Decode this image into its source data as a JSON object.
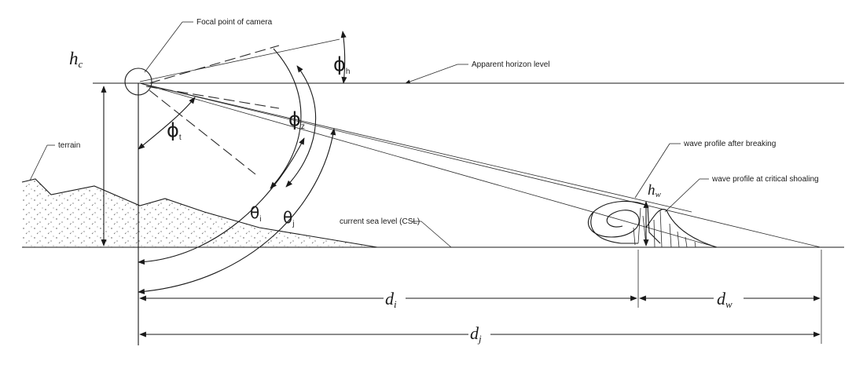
{
  "labels": {
    "focal_point": "Focal point of camera",
    "apparent_horizon": "Apparent horizon level",
    "terrain": "terrain",
    "wave_after_breaking": "wave profile after breaking",
    "wave_critical_shoaling": "wave profile at critical shoaling",
    "current_sea_level": "current sea level (CSL)"
  },
  "symbols": {
    "hc": {
      "main": "h",
      "sub": "c"
    },
    "hw": {
      "main": "h",
      "sub": "w"
    },
    "phi_h": {
      "main": "ϕ",
      "sub": "h"
    },
    "phi_z": {
      "main": "ϕ",
      "sub": "z"
    },
    "phi_t": {
      "main": "ϕ",
      "sub": "t"
    },
    "theta_i": {
      "main": "θ",
      "sub": "i"
    },
    "theta_j": {
      "main": "θ",
      "sub": "j"
    },
    "di": {
      "main": "d",
      "sub": "i"
    },
    "dw": {
      "main": "d",
      "sub": "w"
    },
    "dj": {
      "main": "d",
      "sub": "j"
    }
  }
}
